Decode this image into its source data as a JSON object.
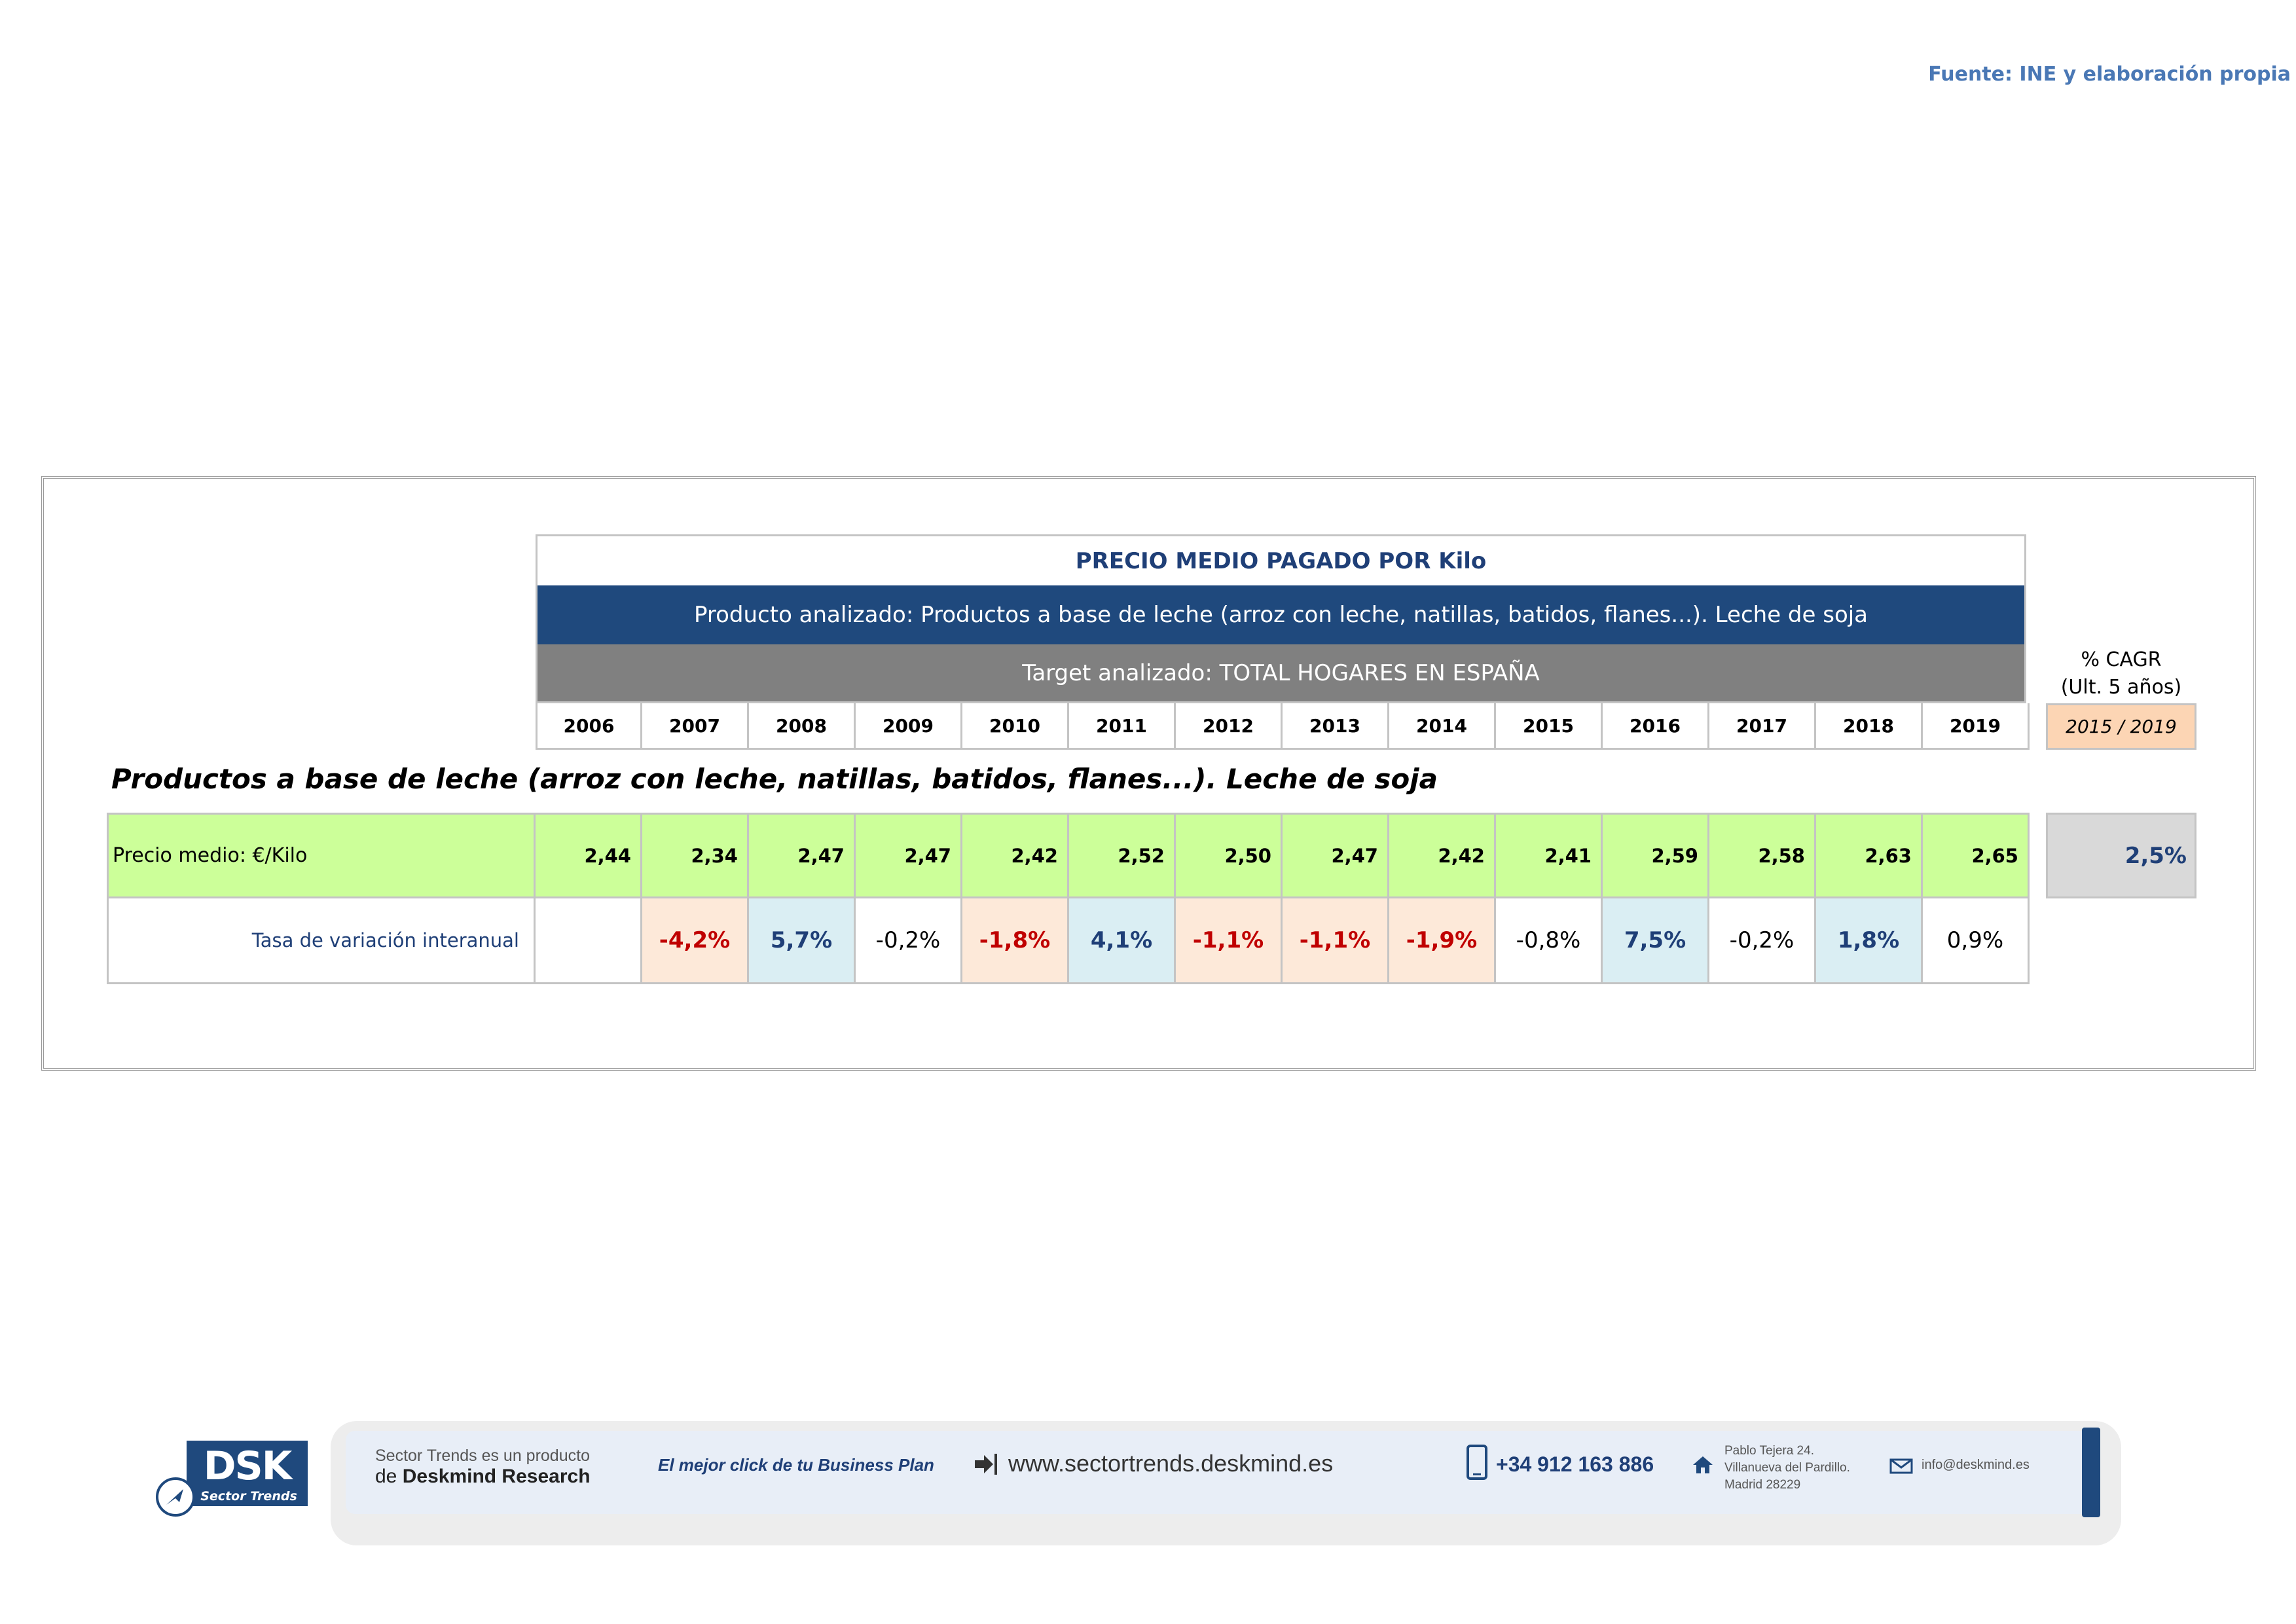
{
  "source": "Fuente: INE y elaboración propia",
  "header": {
    "title": "PRECIO MEDIO PAGADO POR Kilo",
    "product": "Producto analizado: Productos a base de leche (arroz con leche, natillas, batidos, flanes...). Leche de soja",
    "target": "Target analizado: TOTAL HOGARES EN ESPAÑA"
  },
  "years": [
    "2006",
    "2007",
    "2008",
    "2009",
    "2010",
    "2011",
    "2012",
    "2013",
    "2014",
    "2015",
    "2016",
    "2017",
    "2018",
    "2019"
  ],
  "cagr": {
    "header_line1": "% CAGR",
    "header_line2": "(Ult. 5 años)",
    "period": "2015 / 2019",
    "value": "2,5%"
  },
  "section_title": "Productos a base de leche (arroz con leche, natillas, batidos, flanes...). Leche de soja",
  "rows": {
    "price_label": "Precio medio: €/Kilo",
    "prices": [
      "2,44",
      "2,34",
      "2,47",
      "2,47",
      "2,42",
      "2,52",
      "2,50",
      "2,47",
      "2,42",
      "2,41",
      "2,59",
      "2,58",
      "2,63",
      "2,65"
    ],
    "rate_label": "Tasa de variación interanual",
    "rates": [
      "",
      "-4,2%",
      "5,7%",
      "-0,2%",
      "-1,8%",
      "4,1%",
      "-1,1%",
      "-1,1%",
      "-1,9%",
      "-0,8%",
      "7,5%",
      "-0,2%",
      "1,8%",
      "0,9%"
    ],
    "rate_styles": [
      "neu",
      "neg",
      "pos",
      "neu",
      "neg",
      "pos",
      "neg",
      "neg",
      "neg",
      "neu",
      "pos",
      "neu",
      "pos",
      "neu"
    ]
  },
  "footer": {
    "logo": "DSK",
    "logo_sub": "Sector Trends",
    "line1": "Sector Trends es un producto",
    "line2_prefix": "de",
    "line2_brand": "Deskmind Research",
    "slogan": "El mejor click de tu Business Plan",
    "website": "www.sectortrends.deskmind.es",
    "phone": "+34 912 163 886",
    "address1": "Pablo Tejera 24.",
    "address2": "Villanueva del Pardillo.",
    "address3": "Madrid 28229",
    "email": "info@deskmind.es"
  }
}
